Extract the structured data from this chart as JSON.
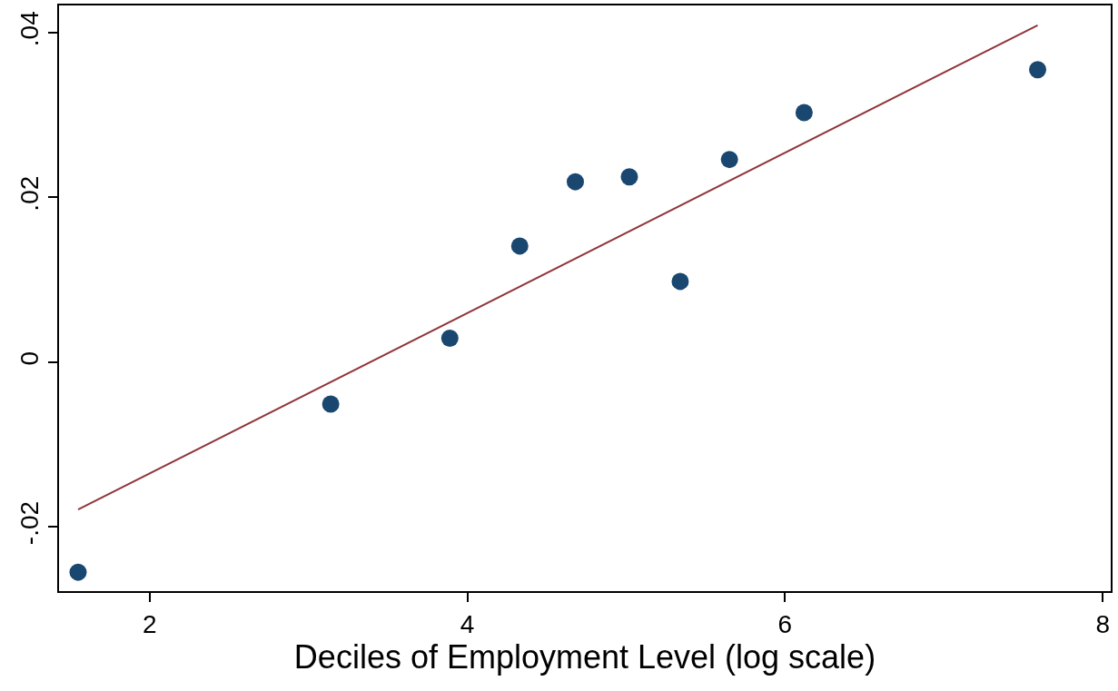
{
  "chart_data": {
    "type": "scatter",
    "xlabel": "Deciles of Employment Level (log scale)",
    "xlim": [
      1.43,
      8.05
    ],
    "xticks": [
      2,
      4,
      6,
      8
    ],
    "ylim": [
      -0.0278,
      0.0433
    ],
    "yticks": [
      {
        "value": 0.04,
        "label": ".04"
      },
      {
        "value": 0.02,
        "label": ".02"
      },
      {
        "value": 0,
        "label": "0"
      },
      {
        "value": -0.02,
        "label": "-.02"
      }
    ],
    "legend": false,
    "series": [
      {
        "marker": "circle",
        "color": "#1a476f",
        "x": [
          1.55,
          3.14,
          3.89,
          4.33,
          4.68,
          5.02,
          5.34,
          5.65,
          6.12,
          7.59
        ],
        "values": [
          -0.0255,
          -0.0051,
          0.0029,
          0.0141,
          0.0219,
          0.0225,
          0.0098,
          0.0246,
          0.0303,
          0.0355
        ]
      },
      {
        "type": "line",
        "color": "#90353b",
        "x": [
          1.55,
          7.59
        ],
        "values": [
          -0.0179,
          0.0409
        ],
        "line_style": "solid"
      }
    ]
  }
}
